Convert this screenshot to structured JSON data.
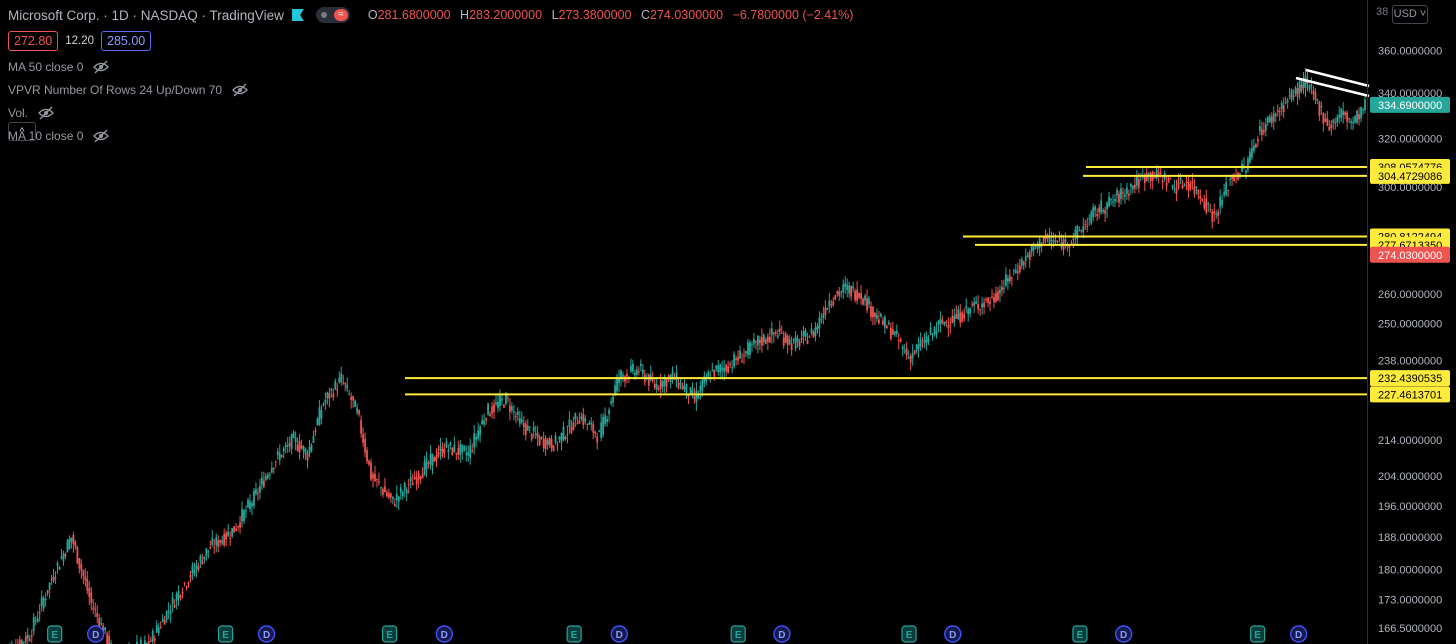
{
  "header": {
    "title": "Microsoft Corp. · 1D · NASDAQ · TradingView",
    "toggle_icon": "≈",
    "ohlc": {
      "o_label": "O",
      "o": "281.6800000",
      "h_label": "H",
      "h": "283.2000000",
      "l_label": "L",
      "l": "273.3800000",
      "c_label": "C",
      "c": "274.0300000",
      "change": "−6.7800000 (−2.41%)"
    },
    "sell_price": "272.80",
    "spread": "12.20",
    "buy_price": "285.00"
  },
  "indicators": [
    {
      "label": "MA 50 close 0"
    },
    {
      "label": "VPVR Number Of Rows 24 Up/Down 70"
    },
    {
      "label": "Vol."
    },
    {
      "label": "MA 10 close 0"
    }
  ],
  "collapse_label": "^",
  "currency": "USD",
  "y_top_partial": "38",
  "colors": {
    "up": "#26a69a",
    "down": "#ef5350",
    "level": "#ffeb3b",
    "trend": "#ffffff",
    "last_price": "#26a69a",
    "current_tag": "#ef5350"
  },
  "chart_data": {
    "type": "candlestick",
    "symbol": "Microsoft Corp.",
    "interval": "1D",
    "exchange": "NASDAQ",
    "y_axis_labels": [
      "360.0000000",
      "340.0000000",
      "320.0000000",
      "300.0000000",
      "260.0000000",
      "250.0000000",
      "238.0000000",
      "214.0000000",
      "204.0000000",
      "196.0000000",
      "188.0000000",
      "180.0000000",
      "173.0000000",
      "166.5000000"
    ],
    "ylim": [
      163,
      385
    ],
    "y_scale": "log",
    "ohlc_path": [
      [
        0,
        160
      ],
      [
        15,
        165
      ],
      [
        28,
        180
      ],
      [
        36,
        188
      ],
      [
        46,
        172
      ],
      [
        58,
        160
      ],
      [
        75,
        163
      ],
      [
        92,
        176
      ],
      [
        105,
        185
      ],
      [
        118,
        190
      ],
      [
        128,
        198
      ],
      [
        138,
        208
      ],
      [
        148,
        214
      ],
      [
        155,
        210
      ],
      [
        163,
        225
      ],
      [
        172,
        232
      ],
      [
        180,
        222
      ],
      [
        187,
        204
      ],
      [
        198,
        197
      ],
      [
        212,
        205
      ],
      [
        224,
        212
      ],
      [
        236,
        210
      ],
      [
        245,
        222
      ],
      [
        255,
        226
      ],
      [
        262,
        219
      ],
      [
        272,
        214
      ],
      [
        280,
        213
      ],
      [
        292,
        221
      ],
      [
        302,
        215
      ],
      [
        312,
        233
      ],
      [
        322,
        235
      ],
      [
        330,
        230
      ],
      [
        339,
        233
      ],
      [
        350,
        226
      ],
      [
        358,
        234
      ],
      [
        366,
        236
      ],
      [
        375,
        240
      ],
      [
        382,
        244
      ],
      [
        392,
        247
      ],
      [
        400,
        243
      ],
      [
        410,
        247
      ],
      [
        418,
        258
      ],
      [
        426,
        262
      ],
      [
        434,
        260
      ],
      [
        442,
        252
      ],
      [
        450,
        247
      ],
      [
        458,
        239
      ],
      [
        466,
        244
      ],
      [
        474,
        250
      ],
      [
        482,
        252
      ],
      [
        491,
        256
      ],
      [
        500,
        258
      ],
      [
        508,
        265
      ],
      [
        516,
        272
      ],
      [
        526,
        280
      ],
      [
        536,
        278
      ],
      [
        542,
        281
      ],
      [
        552,
        290
      ],
      [
        560,
        294
      ],
      [
        570,
        300
      ],
      [
        578,
        305
      ],
      [
        586,
        304
      ],
      [
        592,
        300
      ],
      [
        598,
        302
      ],
      [
        604,
        298
      ],
      [
        612,
        288
      ],
      [
        620,
        303
      ],
      [
        628,
        308
      ],
      [
        634,
        322
      ],
      [
        642,
        330
      ],
      [
        650,
        338
      ],
      [
        658,
        345
      ],
      [
        664,
        335
      ],
      [
        670,
        325
      ],
      [
        676,
        331
      ],
      [
        682,
        327
      ],
      [
        688,
        334
      ]
    ],
    "price_levels": [
      {
        "label": "308.0574776",
        "value": 308.06
      },
      {
        "label": "304.4729086",
        "value": 304.47
      },
      {
        "label": "280.8122494",
        "value": 280.81
      },
      {
        "label": "277.6713350",
        "value": 277.67
      },
      {
        "label": "232.4390535",
        "value": 232.44
      },
      {
        "label": "227.4613701",
        "value": 227.46
      }
    ],
    "last_price": {
      "label": "334.6900000",
      "value": 334.69
    },
    "current_close": {
      "label": "274.0300000",
      "value": 274.03
    },
    "events": [
      {
        "type": "E",
        "frac": 0.04
      },
      {
        "type": "D",
        "frac": 0.07
      },
      {
        "type": "E",
        "frac": 0.165
      },
      {
        "type": "D",
        "frac": 0.195
      },
      {
        "type": "E",
        "frac": 0.285
      },
      {
        "type": "D",
        "frac": 0.325
      },
      {
        "type": "E",
        "frac": 0.42
      },
      {
        "type": "D",
        "frac": 0.453
      },
      {
        "type": "E",
        "frac": 0.54
      },
      {
        "type": "D",
        "frac": 0.572
      },
      {
        "type": "E",
        "frac": 0.665
      },
      {
        "type": "D",
        "frac": 0.697
      },
      {
        "type": "E",
        "frac": 0.79
      },
      {
        "type": "D",
        "frac": 0.822
      },
      {
        "type": "E",
        "frac": 0.92
      },
      {
        "type": "D",
        "frac": 0.95
      }
    ]
  }
}
